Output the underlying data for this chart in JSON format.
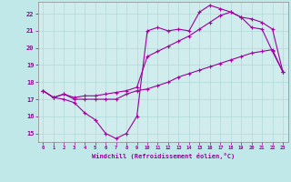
{
  "background_color": "#c0e8e8",
  "plot_bg_color": "#d0ecec",
  "grid_color": "#b0d8d8",
  "line_color": "#990099",
  "marker_color": "#aa00aa",
  "xlabel": "Windchill (Refroidissement éolien,°C)",
  "xlim": [
    -0.5,
    23.5
  ],
  "ylim": [
    14.5,
    22.7
  ],
  "yticks": [
    15,
    16,
    17,
    18,
    19,
    20,
    21,
    22
  ],
  "xticks": [
    0,
    1,
    2,
    3,
    4,
    5,
    6,
    7,
    8,
    9,
    10,
    11,
    12,
    13,
    14,
    15,
    16,
    17,
    18,
    19,
    20,
    21,
    22,
    23
  ],
  "series": [
    {
      "x": [
        0,
        1,
        2,
        3,
        4,
        5,
        6,
        7,
        8,
        9,
        10,
        11,
        12,
        13,
        14,
        15,
        16,
        17,
        18,
        19,
        20,
        21,
        22,
        23
      ],
      "y": [
        17.5,
        17.1,
        17.0,
        16.8,
        16.2,
        15.8,
        15.0,
        14.7,
        15.0,
        16.0,
        21.0,
        21.2,
        21.0,
        21.1,
        21.0,
        22.1,
        22.5,
        22.3,
        22.1,
        21.8,
        21.2,
        21.1,
        19.8,
        18.6
      ]
    },
    {
      "x": [
        0,
        1,
        2,
        3,
        4,
        5,
        6,
        7,
        8,
        9,
        10,
        11,
        12,
        13,
        14,
        15,
        16,
        17,
        18,
        19,
        20,
        21,
        22,
        23
      ],
      "y": [
        17.5,
        17.1,
        17.3,
        17.0,
        17.0,
        17.0,
        17.0,
        17.0,
        17.3,
        17.5,
        17.6,
        17.8,
        18.0,
        18.3,
        18.5,
        18.7,
        18.9,
        19.1,
        19.3,
        19.5,
        19.7,
        19.8,
        19.9,
        18.6
      ]
    },
    {
      "x": [
        0,
        1,
        2,
        3,
        4,
        5,
        6,
        7,
        8,
        9,
        10,
        11,
        12,
        13,
        14,
        15,
        16,
        17,
        18,
        19,
        20,
        21,
        22,
        23
      ],
      "y": [
        17.5,
        17.1,
        17.3,
        17.1,
        17.2,
        17.2,
        17.3,
        17.4,
        17.5,
        17.7,
        19.5,
        19.8,
        20.1,
        20.4,
        20.7,
        21.1,
        21.5,
        21.9,
        22.1,
        21.8,
        21.7,
        21.5,
        21.1,
        18.6
      ]
    }
  ]
}
